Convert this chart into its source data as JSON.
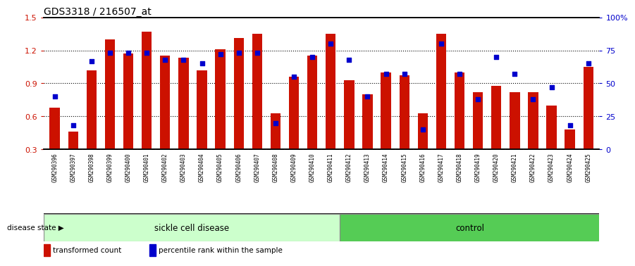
{
  "title": "GDS3318 / 216507_at",
  "samples": [
    "GSM290396",
    "GSM290397",
    "GSM290398",
    "GSM290399",
    "GSM290400",
    "GSM290401",
    "GSM290402",
    "GSM290403",
    "GSM290404",
    "GSM290405",
    "GSM290406",
    "GSM290407",
    "GSM290408",
    "GSM290409",
    "GSM290410",
    "GSM290411",
    "GSM290412",
    "GSM290413",
    "GSM290414",
    "GSM290415",
    "GSM290416",
    "GSM290417",
    "GSM290418",
    "GSM290419",
    "GSM290420",
    "GSM290421",
    "GSM290422",
    "GSM290423",
    "GSM290424",
    "GSM290425"
  ],
  "transformed_count": [
    0.68,
    0.46,
    1.02,
    1.3,
    1.17,
    1.37,
    1.15,
    1.13,
    1.02,
    1.21,
    1.31,
    1.35,
    0.63,
    0.96,
    1.15,
    1.35,
    0.93,
    0.8,
    1.0,
    0.97,
    0.63,
    1.35,
    1.0,
    0.82,
    0.88,
    0.82,
    0.82,
    0.7,
    0.48,
    1.05
  ],
  "percentile_rank": [
    40,
    18,
    67,
    73,
    73,
    73,
    68,
    68,
    65,
    72,
    73,
    73,
    20,
    55,
    70,
    80,
    68,
    40,
    57,
    57,
    15,
    80,
    57,
    38,
    70,
    57,
    38,
    47,
    18,
    65
  ],
  "sickle_count": 16,
  "control_count": 14,
  "ylim_left": [
    0.3,
    1.5
  ],
  "ylim_right": [
    0,
    100
  ],
  "bar_color": "#CC1100",
  "dot_color": "#0000CC",
  "sickle_color": "#CCFFCC",
  "control_color": "#55CC55",
  "bg_color": "#FFFFFF",
  "grid_color": "#000000",
  "tick_label_color_left": "#CC1100",
  "tick_label_color_right": "#0000CC",
  "xlabel_bg": "#CCCCCC"
}
